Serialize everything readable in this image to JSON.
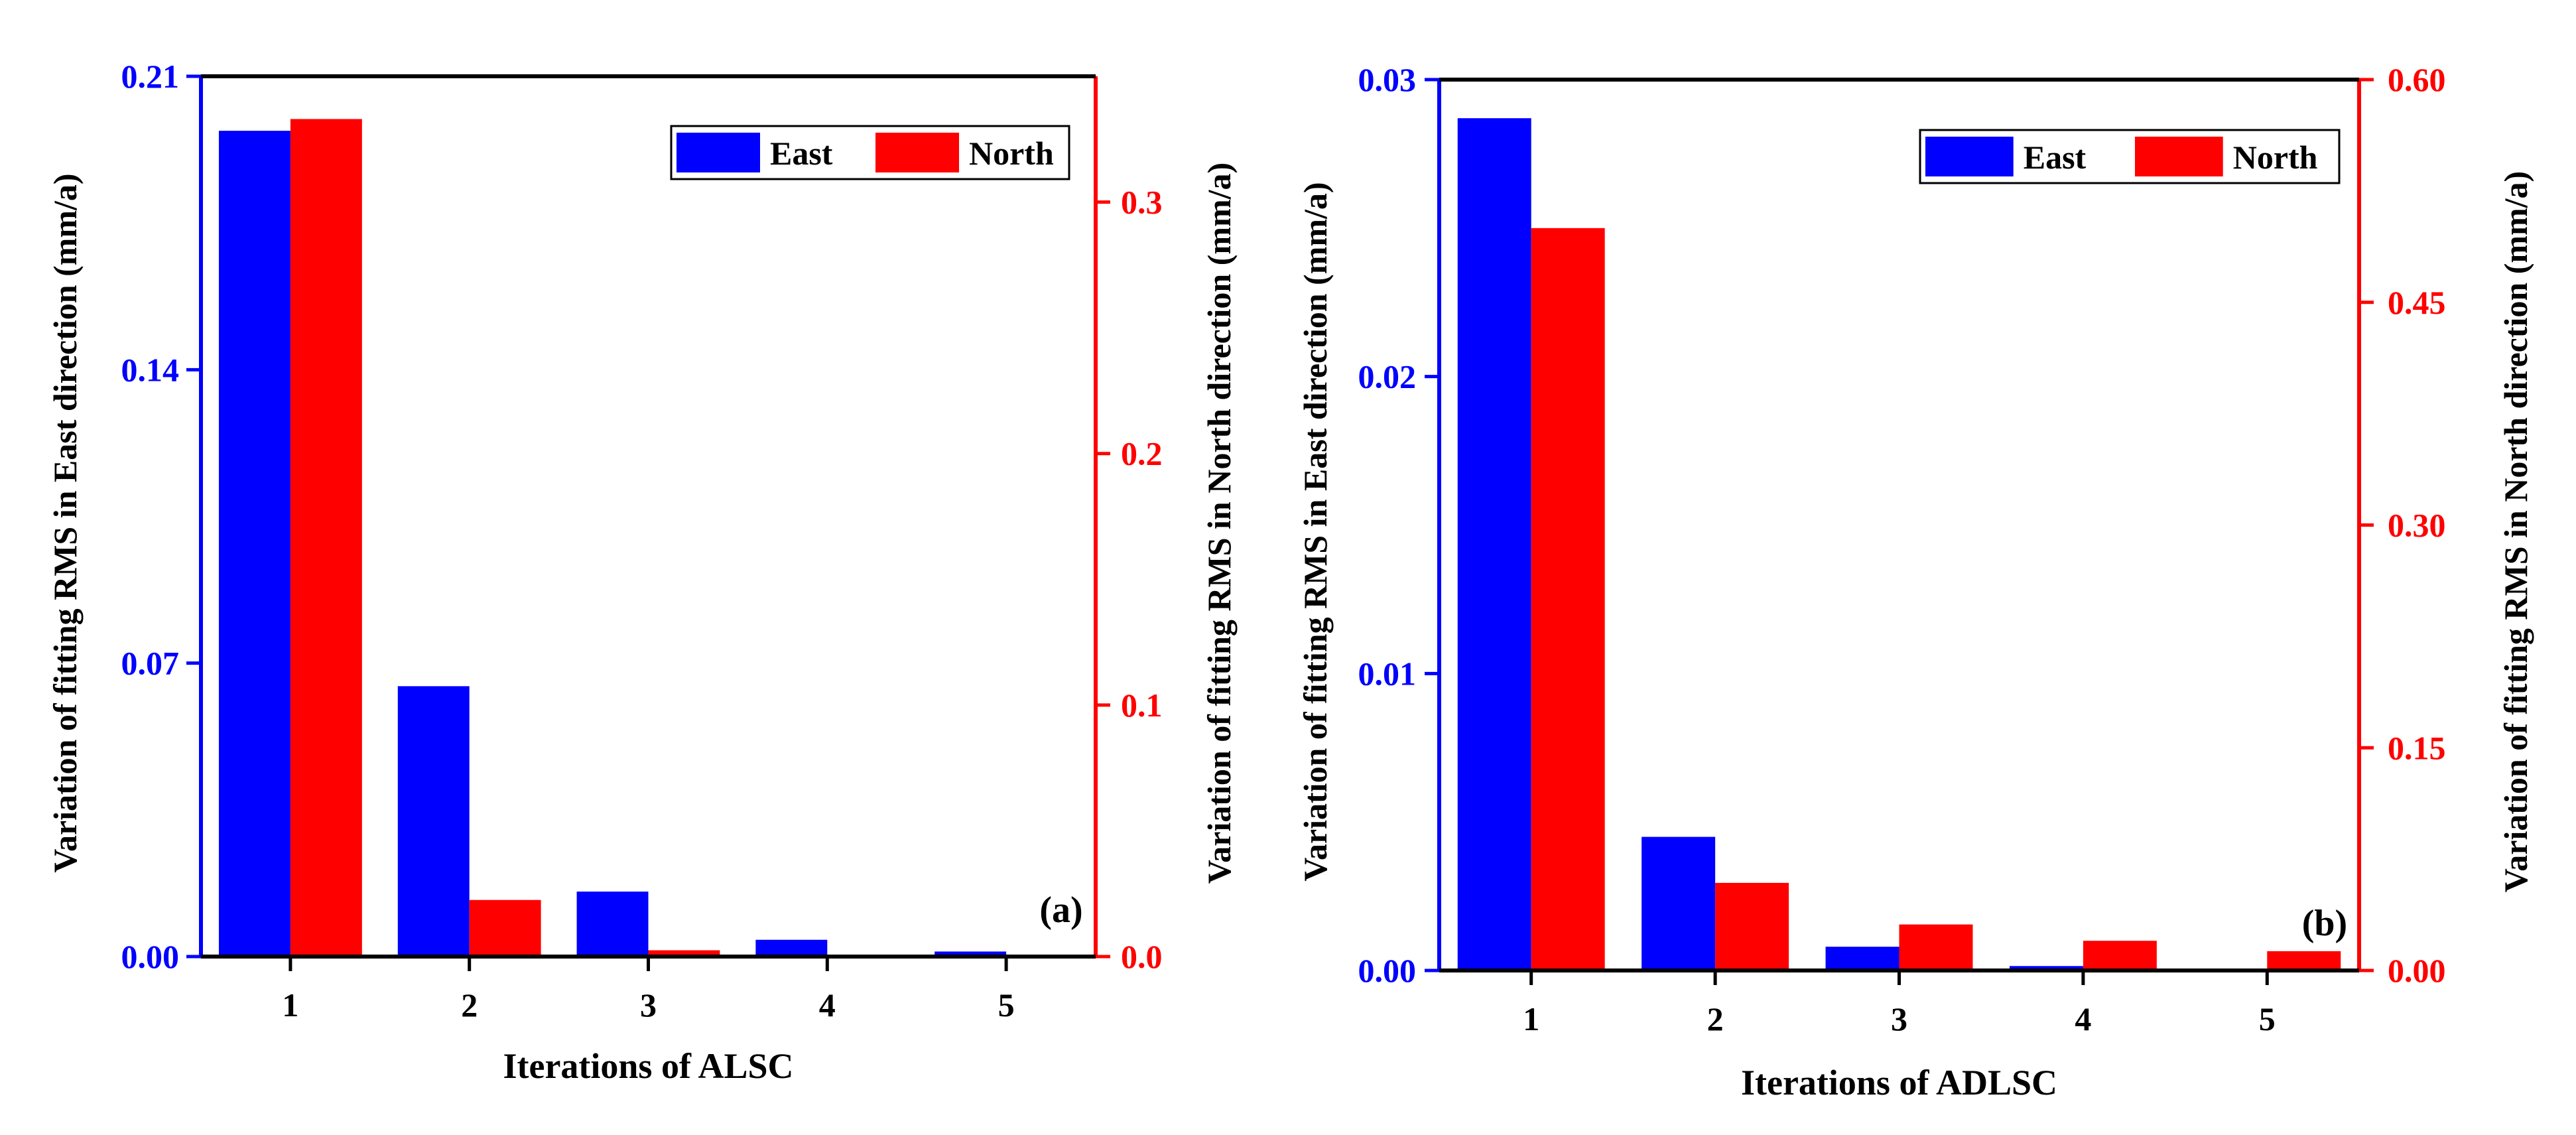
{
  "colors": {
    "east": "#0000ff",
    "north": "#ff0000",
    "axis": "#000000"
  },
  "chart_data": [
    {
      "type": "bar",
      "panel_label": "(a)",
      "xlabel": "Iterations of ALSC",
      "ylabel_left": "Variation of fitting RMS in East direction (mm/a)",
      "ylabel_right": "Variation of fitting RMS in North direction (mm/a)",
      "categories": [
        "1",
        "2",
        "3",
        "4",
        "5"
      ],
      "ylim_left": [
        0,
        0.21
      ],
      "ylim_right": [
        0,
        0.35
      ],
      "yticks_left": [
        "0.00",
        "0.07",
        "0.14",
        "0.21"
      ],
      "yticks_right": [
        "0.0",
        "0.1",
        "0.2",
        "0.3"
      ],
      "legend_position": "top-right",
      "series": [
        {
          "name": "East",
          "axis": "left",
          "values": [
            0.197,
            0.0645,
            0.0155,
            0.004,
            0.0012
          ]
        },
        {
          "name": "North",
          "axis": "right",
          "values": [
            0.333,
            0.0225,
            0.0025,
            0.0,
            0.0
          ]
        }
      ]
    },
    {
      "type": "bar",
      "panel_label": "(b)",
      "xlabel": "Iterations of ADLSC",
      "ylabel_left": "Variation of fitting RMS in East direction (mm/a)",
      "ylabel_right": "Variation of fitting RMS in North direction (mm/a)",
      "categories": [
        "1",
        "2",
        "3",
        "4",
        "5"
      ],
      "ylim_left": [
        0,
        0.03
      ],
      "ylim_right": [
        0,
        0.6
      ],
      "yticks_left": [
        "0.00",
        "0.01",
        "0.02",
        "0.03"
      ],
      "yticks_right": [
        "0.00",
        "0.15",
        "0.30",
        "0.45",
        "0.60"
      ],
      "legend_position": "top-right",
      "series": [
        {
          "name": "East",
          "axis": "left",
          "values": [
            0.0287,
            0.0045,
            0.0008,
            0.00015,
            0.0
          ]
        },
        {
          "name": "North",
          "axis": "right",
          "values": [
            0.5,
            0.059,
            0.031,
            0.02,
            0.013
          ]
        }
      ]
    }
  ]
}
